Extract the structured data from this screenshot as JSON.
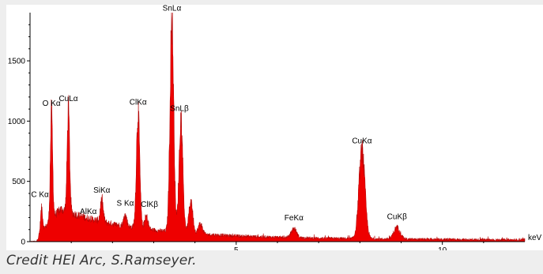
{
  "chart_data": {
    "type": "area",
    "title": "",
    "xlabel": "keV",
    "ylabel": "",
    "xlim": [
      0,
      12
    ],
    "ylim": [
      0,
      1900
    ],
    "grid": false,
    "legend": "none",
    "x_ticks": [
      {
        "value": 5,
        "label": "5"
      },
      {
        "value": 10,
        "label": "10"
      }
    ],
    "y_ticks": [
      {
        "value": 0,
        "label": "0"
      },
      {
        "value": 500,
        "label": "500"
      },
      {
        "value": 1000,
        "label": "1000"
      },
      {
        "value": 1500,
        "label": "1500"
      }
    ],
    "fill_color": "#ee0000",
    "peaks": [
      {
        "label": "C Kα",
        "x": 0.28,
        "y": 280
      },
      {
        "label": "O Kα",
        "x": 0.52,
        "y": 1060
      },
      {
        "label": "CuLα",
        "x": 0.93,
        "y": 1100
      },
      {
        "label": "AlKα",
        "x": 1.49,
        "y": 150
      },
      {
        "label": "SiKα",
        "x": 1.74,
        "y": 340
      },
      {
        "label": "S Kα",
        "x": 2.31,
        "y": 220
      },
      {
        "label": "ClKα",
        "x": 2.62,
        "y": 1070
      },
      {
        "label": "ClKβ",
        "x": 2.82,
        "y": 210
      },
      {
        "label": "SnLα",
        "x": 3.44,
        "y": 1850
      },
      {
        "label": "SnLβ",
        "x": 3.66,
        "y": 1020
      },
      {
        "label": "FeKα",
        "x": 6.4,
        "y": 110
      },
      {
        "label": "CuKα",
        "x": 8.05,
        "y": 750
      },
      {
        "label": "CuKβ",
        "x": 8.9,
        "y": 120
      }
    ],
    "extra_peaks": [
      {
        "x": 3.9,
        "y": 340
      },
      {
        "x": 4.13,
        "y": 150
      }
    ]
  },
  "caption": "Credit HEI Arc, S.Ramseyer."
}
